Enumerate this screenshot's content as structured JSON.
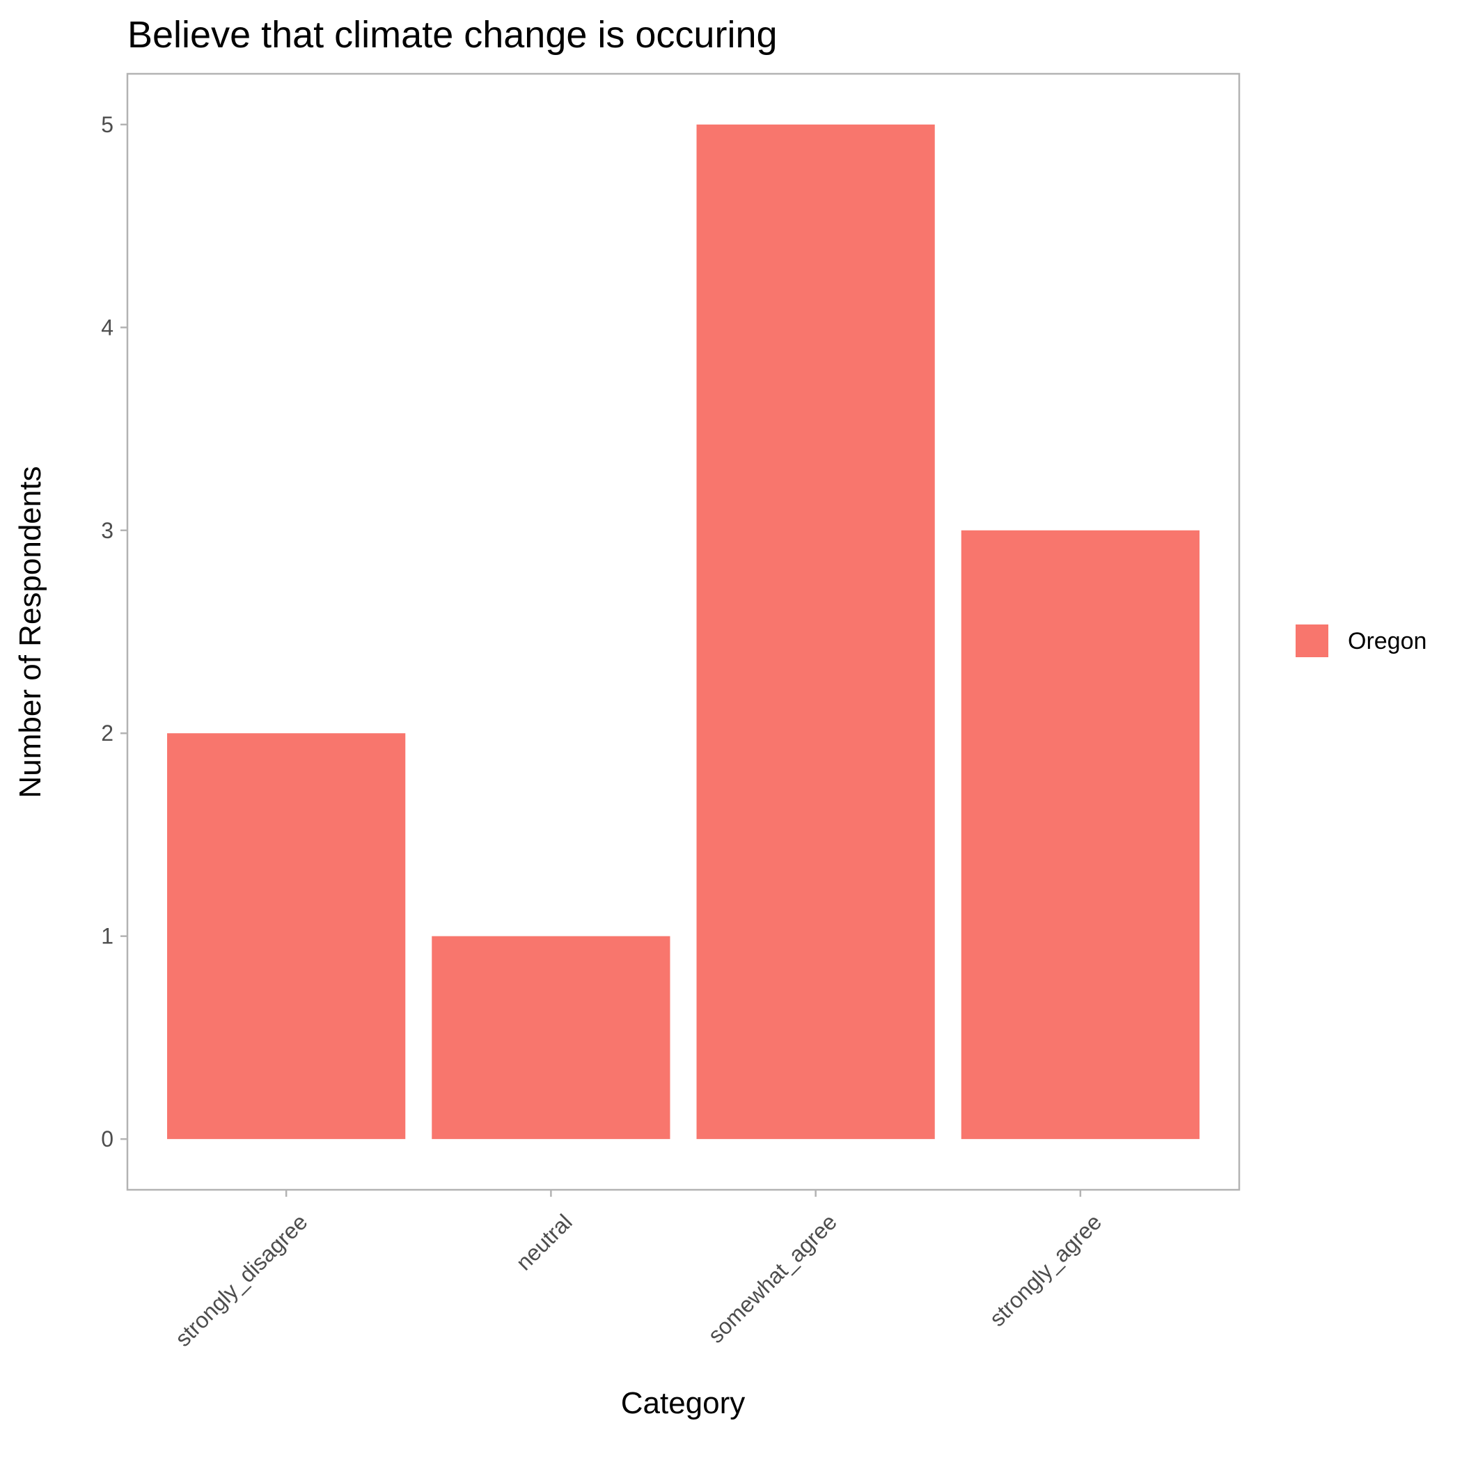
{
  "chart_data": {
    "type": "bar",
    "title": "Believe that climate change is occuring",
    "xlabel": "Category",
    "ylabel": "Number of Respondents",
    "categories": [
      "strongly_disagree",
      "neutral",
      "somewhat_agree",
      "strongly_agree"
    ],
    "series": [
      {
        "name": "Oregon",
        "values": [
          2,
          1,
          5,
          3
        ],
        "color": "#F8766D"
      }
    ],
    "yticks": [
      0,
      1,
      2,
      3,
      4,
      5
    ],
    "ylim": [
      -0.25,
      5.25
    ],
    "grid": false,
    "legend_position": "right",
    "panel_border_color": "#B3B3B3",
    "tick_color": "#B3B3B3"
  }
}
